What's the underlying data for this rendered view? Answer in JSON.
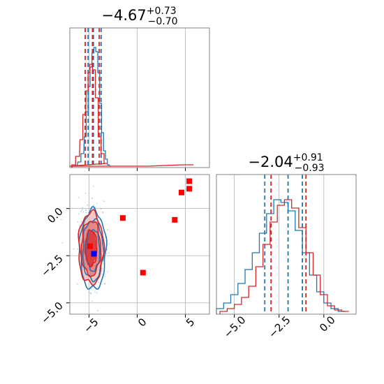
{
  "colors": {
    "series_a": "#1f77b4",
    "series_b": "#d62728",
    "grid": "#b0b0b0",
    "frame": "#808080",
    "marker_red": "#ff0000",
    "marker_blue": "#0000ff"
  },
  "chart_data": [
    {
      "type": "histogram",
      "panel": "top-left",
      "title": {
        "value": "−4.67",
        "sup": "+0.73",
        "sub": "−0.70"
      },
      "x_range": [
        -7,
        7.5
      ],
      "grid": true,
      "x_ticks": [
        -5,
        0,
        5
      ],
      "x_tick_labels_shown": false,
      "series": [
        {
          "color": "#1f77b4",
          "style": "step",
          "bin_centers": [
            -6.5,
            -6.0,
            -5.7,
            -5.4,
            -5.2,
            -5.0,
            -4.8,
            -4.6,
            -4.4,
            -4.2,
            -4.0,
            -3.8,
            -3.6,
            -3.4,
            -3.2,
            -3.0,
            -2.8
          ],
          "density": [
            0.01,
            0.04,
            0.1,
            0.22,
            0.4,
            0.58,
            0.72,
            0.82,
            0.86,
            0.83,
            0.68,
            0.46,
            0.25,
            0.12,
            0.06,
            0.02,
            0.01
          ],
          "quantile_lines": [
            -5.1,
            -4.55,
            -3.75
          ]
        },
        {
          "color": "#d62728",
          "style": "step",
          "bin_centers": [
            -6.6,
            -6.2,
            -5.8,
            -5.5,
            -5.2,
            -5.0,
            -4.8,
            -4.5,
            -4.2,
            -3.9,
            -3.6,
            -3.3,
            -3.0,
            5.1,
            5.6
          ],
          "density": [
            0.02,
            0.08,
            0.2,
            0.38,
            0.55,
            0.68,
            0.74,
            0.7,
            0.5,
            0.22,
            0.1,
            0.03,
            0.01,
            0.02,
            0.02
          ],
          "quantile_lines": [
            -5.4,
            -4.65,
            -3.95
          ]
        }
      ]
    },
    {
      "type": "histogram",
      "panel": "bottom-right",
      "title": {
        "value": "−2.04",
        "sup": "+0.91",
        "sub": "−0.93"
      },
      "x_range": [
        -6,
        1.8
      ],
      "grid": true,
      "x_ticks": [
        -5.0,
        -2.5,
        0.0
      ],
      "x_tick_labels": [
        "−5.0",
        "−2.5",
        "0.0"
      ],
      "series": [
        {
          "color": "#1f77b4",
          "style": "step",
          "bin_centers": [
            -5.8,
            -5.4,
            -5.0,
            -4.6,
            -4.2,
            -3.8,
            -3.4,
            -3.0,
            -2.6,
            -2.2,
            -1.8,
            -1.4,
            -1.0,
            -0.6,
            -0.2,
            0.2,
            0.6,
            1.0
          ],
          "density": [
            0.04,
            0.08,
            0.14,
            0.22,
            0.32,
            0.44,
            0.58,
            0.72,
            0.82,
            0.8,
            0.74,
            0.6,
            0.44,
            0.28,
            0.16,
            0.08,
            0.04,
            0.02
          ],
          "quantile_lines": [
            -3.3,
            -2.0,
            -1.2
          ]
        },
        {
          "color": "#d62728",
          "style": "step",
          "bin_centers": [
            -5.6,
            -5.2,
            -4.8,
            -4.4,
            -4.0,
            -3.6,
            -3.2,
            -2.8,
            -2.4,
            -2.0,
            -1.6,
            -1.2,
            -0.8,
            -0.4,
            0.0,
            0.4,
            0.8,
            1.2
          ],
          "density": [
            0.02,
            0.04,
            0.07,
            0.12,
            0.2,
            0.34,
            0.5,
            0.66,
            0.78,
            0.82,
            0.76,
            0.62,
            0.44,
            0.28,
            0.14,
            0.06,
            0.03,
            0.02
          ],
          "quantile_lines": [
            -2.95,
            -1.0
          ]
        }
      ]
    },
    {
      "type": "scatter",
      "panel": "bottom-left",
      "x_range": [
        -7,
        7.5
      ],
      "y_range": [
        -5.6,
        1.8
      ],
      "grid": true,
      "x_ticks": [
        -5,
        0,
        5
      ],
      "x_tick_labels": [
        "−5",
        "0",
        "5"
      ],
      "y_ticks": [
        0.0,
        -2.5,
        -5.0
      ],
      "y_tick_labels": [
        "0.0",
        "−2.5",
        "−5.0"
      ],
      "contours": [
        {
          "color": "#1f77b4",
          "center": [
            -4.6,
            -2.2
          ],
          "levels": [
            {
              "rx": 1.35,
              "ry": 2.1
            },
            {
              "rx": 1.05,
              "ry": 1.6
            },
            {
              "rx": 0.7,
              "ry": 1.1
            }
          ]
        },
        {
          "color": "#d62728",
          "center": [
            -4.8,
            -2.1
          ],
          "levels": [
            {
              "rx": 1.3,
              "ry": 1.9
            },
            {
              "rx": 1.0,
              "ry": 1.45
            },
            {
              "rx": 0.6,
              "ry": 0.95
            }
          ]
        }
      ],
      "red_square_markers": [
        {
          "x": 5.4,
          "y": 1.45
        },
        {
          "x": 5.4,
          "y": 1.05
        },
        {
          "x": 4.6,
          "y": 0.85
        },
        {
          "x": -1.5,
          "y": -0.5
        },
        {
          "x": 3.9,
          "y": -0.6
        },
        {
          "x": 0.6,
          "y": -3.4
        },
        {
          "x": -4.9,
          "y": -2.0
        }
      ],
      "blue_square_markers": [
        {
          "x": -4.5,
          "y": -2.4
        }
      ]
    }
  ]
}
